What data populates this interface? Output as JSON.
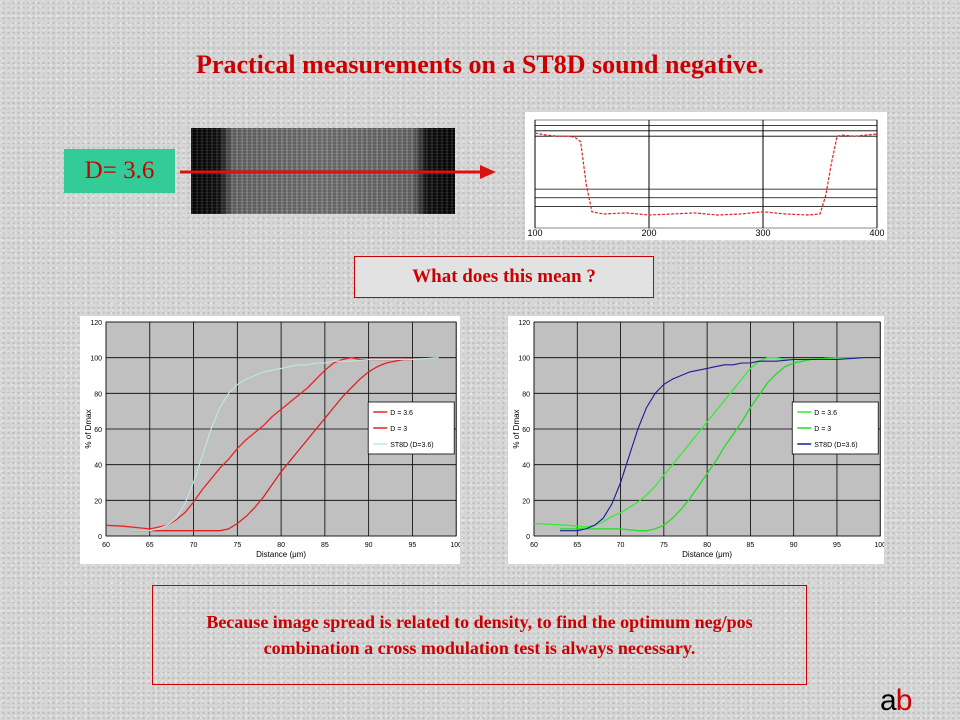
{
  "title": "Practical measurements on a ST8D sound negative.",
  "density_label": "D= 3.6",
  "question": "What does this mean ?",
  "note": "Because image spread is related to density, to find the optimum neg/pos combination a cross modulation test is always necessary.",
  "logo": {
    "a": "a",
    "b": "b"
  },
  "colors": {
    "accent": "#cc0000",
    "label_bg": "#33cc99"
  },
  "chart_data": [
    {
      "type": "line",
      "title": "",
      "xlim": [
        100,
        400
      ],
      "ylim": [
        0,
        1
      ],
      "x_ticks": [
        "100",
        "200",
        "300",
        "400"
      ],
      "series": [
        {
          "color": "#dd2222",
          "x": [
            100,
            110,
            120,
            130,
            135,
            140,
            145,
            150,
            160,
            180,
            200,
            220,
            240,
            260,
            280,
            300,
            320,
            340,
            350,
            355,
            360,
            365,
            370,
            380,
            390,
            400
          ],
          "y": [
            0.88,
            0.86,
            0.85,
            0.85,
            0.84,
            0.8,
            0.4,
            0.15,
            0.13,
            0.14,
            0.12,
            0.13,
            0.14,
            0.12,
            0.13,
            0.15,
            0.13,
            0.12,
            0.13,
            0.3,
            0.6,
            0.85,
            0.86,
            0.85,
            0.86,
            0.87
          ]
        }
      ]
    },
    {
      "type": "line",
      "xlabel": "Distance (μm)",
      "ylabel": "% of Dmax",
      "xlim": [
        60,
        100
      ],
      "ylim": [
        0,
        120
      ],
      "x_ticks": [
        "60",
        "65",
        "70",
        "75",
        "80",
        "85",
        "90",
        "95",
        "100"
      ],
      "y_ticks": [
        "0",
        "20",
        "40",
        "60",
        "80",
        "100",
        "120"
      ],
      "grid": true,
      "legend": "right",
      "series": [
        {
          "name": "D = 3.6",
          "color": "#ee2222",
          "x": [
            60,
            62,
            64,
            65,
            66,
            67,
            68,
            69,
            70,
            71,
            72,
            73,
            74,
            75,
            76,
            77,
            78,
            79,
            80,
            81,
            82,
            83,
            84,
            85,
            86,
            87,
            88,
            89,
            90,
            92,
            94,
            95
          ],
          "y": [
            6,
            5.5,
            4.5,
            4,
            5,
            6,
            9,
            13,
            19,
            26,
            32,
            38,
            43,
            49,
            54,
            58,
            62,
            67,
            71,
            75,
            79,
            83,
            88,
            93,
            97,
            99,
            100,
            99,
            99,
            99,
            99,
            99
          ]
        },
        {
          "name": "D = 3",
          "color": "#dd2222",
          "x": [
            63,
            65,
            66,
            68,
            70,
            72,
            73,
            74,
            75,
            76,
            77,
            78,
            79,
            80,
            81,
            82,
            83,
            84,
            85,
            86,
            87,
            88,
            89,
            90,
            91,
            92,
            94,
            95
          ],
          "y": [
            3,
            3,
            3,
            3,
            3,
            3,
            3,
            4,
            7,
            11,
            16,
            22,
            29,
            36,
            42,
            48,
            54,
            60,
            66,
            72,
            78,
            83,
            88,
            92,
            95,
            97,
            99,
            99
          ]
        },
        {
          "name": "ST8D (D=3.6)",
          "color": "#bfe8e8",
          "x": [
            63,
            65,
            66,
            67,
            68,
            69,
            70,
            71,
            72,
            73,
            74,
            75,
            76,
            77,
            78,
            79,
            80,
            81,
            82,
            83,
            84,
            85,
            86,
            88,
            90,
            95,
            98
          ],
          "y": [
            3,
            3,
            4,
            6,
            10,
            18,
            30,
            45,
            60,
            72,
            80,
            85,
            88,
            90,
            92,
            93,
            94,
            95,
            96,
            96,
            97,
            97,
            98,
            98,
            99,
            99,
            100
          ]
        }
      ]
    },
    {
      "type": "line",
      "xlabel": "Distance (μm)",
      "ylabel": "% of Dmax",
      "xlim": [
        60,
        100
      ],
      "ylim": [
        0,
        120
      ],
      "x_ticks": [
        "60",
        "65",
        "70",
        "75",
        "80",
        "85",
        "90",
        "95",
        "100"
      ],
      "y_ticks": [
        "0",
        "20",
        "40",
        "60",
        "80",
        "100",
        "120"
      ],
      "grid": true,
      "legend": "right",
      "series": [
        {
          "name": "D = 3.6",
          "color": "#33ee33",
          "x": [
            60,
            62,
            64,
            65,
            66,
            67,
            68,
            69,
            70,
            71,
            72,
            73,
            74,
            75,
            76,
            77,
            78,
            79,
            80,
            81,
            82,
            83,
            84,
            85,
            86,
            87,
            88,
            89,
            90,
            92,
            95,
            98
          ],
          "y": [
            7,
            6.5,
            6,
            5.5,
            5,
            6,
            8,
            11,
            13,
            16,
            19,
            23,
            28,
            34,
            40,
            46,
            52,
            58,
            64,
            70,
            76,
            82,
            88,
            94,
            98,
            100,
            100,
            99,
            99,
            99,
            100,
            100
          ]
        },
        {
          "name": "D = 3",
          "color": "#22dd22",
          "x": [
            63,
            65,
            68,
            70,
            72,
            73,
            74,
            75,
            76,
            77,
            78,
            79,
            80,
            81,
            82,
            83,
            84,
            85,
            86,
            87,
            88,
            89,
            90,
            92,
            95,
            98
          ],
          "y": [
            4,
            4,
            4,
            4,
            3,
            3,
            4,
            6,
            10,
            15,
            21,
            28,
            35,
            42,
            50,
            57,
            64,
            72,
            79,
            86,
            91,
            95,
            97,
            99,
            100,
            100
          ]
        },
        {
          "name": "ST8D (D=3.6)",
          "color": "#1a1a99",
          "x": [
            63,
            65,
            66,
            67,
            68,
            69,
            70,
            71,
            72,
            73,
            74,
            75,
            76,
            77,
            78,
            79,
            80,
            81,
            82,
            83,
            84,
            85,
            86,
            88,
            90,
            95,
            98
          ],
          "y": [
            3,
            3,
            4,
            6,
            10,
            18,
            30,
            45,
            60,
            72,
            80,
            85,
            88,
            90,
            92,
            93,
            94,
            95,
            96,
            96,
            97,
            97,
            98,
            98,
            99,
            99,
            100
          ]
        }
      ]
    }
  ]
}
